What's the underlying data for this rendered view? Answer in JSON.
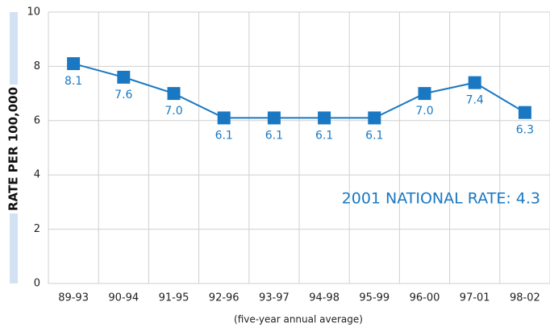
{
  "chart_data": {
    "type": "line",
    "y_label": "RATE PER 100,000",
    "x_label": "(five-year annual average)",
    "annotation": "2001 NATIONAL RATE: 4.3",
    "categories": [
      "89-93",
      "90-94",
      "91-95",
      "92-96",
      "93-97",
      "94-98",
      "95-99",
      "96-00",
      "97-01",
      "98-02"
    ],
    "series": [
      {
        "name": "Rate",
        "color": "#1a78c2",
        "values": [
          8.1,
          7.6,
          7.0,
          6.1,
          6.1,
          6.1,
          6.1,
          7.0,
          7.4,
          6.3
        ],
        "value_labels": [
          "8.1",
          "7.6",
          "7.0",
          "6.1",
          "6.1",
          "6.1",
          "6.1",
          "7.0",
          "7.4",
          "6.3"
        ]
      }
    ],
    "ylim": [
      0,
      10
    ],
    "yticks": [
      0,
      2,
      4,
      6,
      8,
      10
    ],
    "grid": true
  }
}
